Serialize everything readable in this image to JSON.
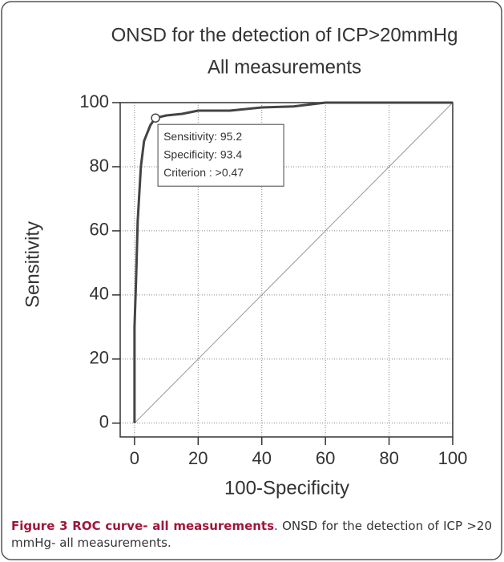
{
  "chart_data": {
    "type": "line",
    "title": "ONSD for the detection of ICP>20mmHg",
    "subtitle": "All measurements",
    "x_label": "100-Specificity",
    "y_label": "Sensitivity",
    "series": [
      {
        "color": "#444444",
        "x": [
          0,
          0,
          0.5,
          1,
          2,
          3,
          5,
          6.6,
          10,
          15,
          20,
          30,
          35,
          40,
          50,
          60,
          100
        ],
        "values": [
          0,
          30,
          45,
          63,
          80,
          88,
          93,
          95.2,
          96,
          96.5,
          97.5,
          97.5,
          98,
          98.5,
          98.8,
          100,
          100
        ]
      }
    ],
    "diagonal": {
      "x": [
        0,
        100
      ],
      "values": [
        0,
        100
      ],
      "color": "#999999"
    },
    "marker": {
      "x": 6.6,
      "y": 95.2
    },
    "annotations": [
      "Sensitivity: 95.2",
      "Specificity: 93.4",
      "Criterion : >0.47"
    ],
    "xlim": [
      -4.5,
      100
    ],
    "ylim": [
      -4.3,
      100
    ],
    "xticks": [
      0,
      20,
      40,
      60,
      80,
      100
    ],
    "yticks": [
      0,
      20,
      40,
      60,
      80,
      100
    ],
    "grid": true
  },
  "caption": {
    "label": "Figure 3 ROC curve- all measurements",
    "text": ". ONSD for the detection of ICP >20 mmHg- all measurements."
  }
}
